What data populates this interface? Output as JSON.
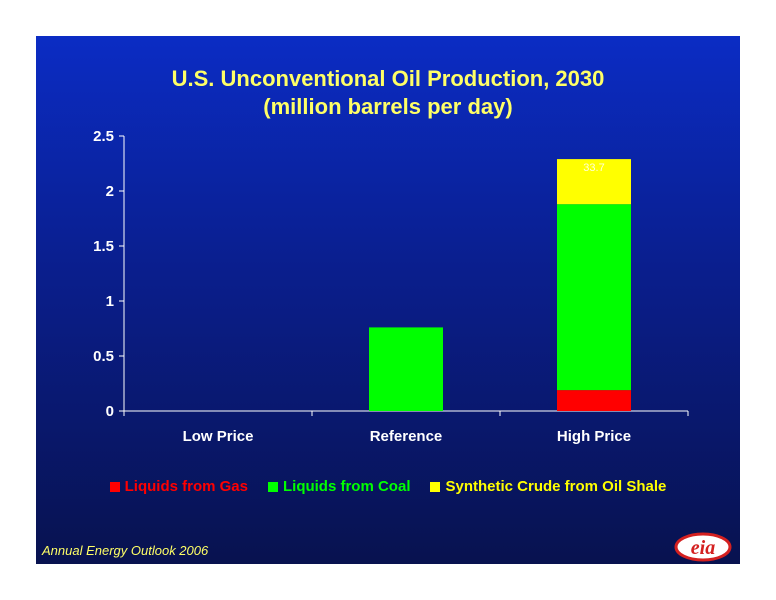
{
  "chart_data": {
    "type": "bar",
    "stacked": true,
    "title": "U.S. Unconventional Oil Production, 2030",
    "subtitle": "(million barrels per day)",
    "categories": [
      "Low Price",
      "Reference",
      "High Price"
    ],
    "series": [
      {
        "name": "Liquids from Gas",
        "color": "#ff0000",
        "values": [
          0,
          0,
          0.19
        ]
      },
      {
        "name": "Liquids from Coal",
        "color": "#00ff00",
        "values": [
          0,
          0.76,
          1.69
        ]
      },
      {
        "name": "Synthetic Crude from Oil Shale",
        "color": "#ffff00",
        "values": [
          0,
          0,
          0.41
        ]
      }
    ],
    "ylim": [
      0,
      2.5
    ],
    "yticks": [
      "0",
      "0.5",
      "1",
      "1.5",
      "2",
      "2.5"
    ],
    "annotations": [
      {
        "text": "33.7",
        "category": "High Price"
      }
    ],
    "legend_position": "bottom",
    "grid": false
  },
  "footer": {
    "source": "Annual Energy Outlook 2006"
  },
  "logo": {
    "text": "eia"
  },
  "colors": {
    "background": "#0a1e8c",
    "title": "#ffff66",
    "axis": "#ffffff"
  }
}
